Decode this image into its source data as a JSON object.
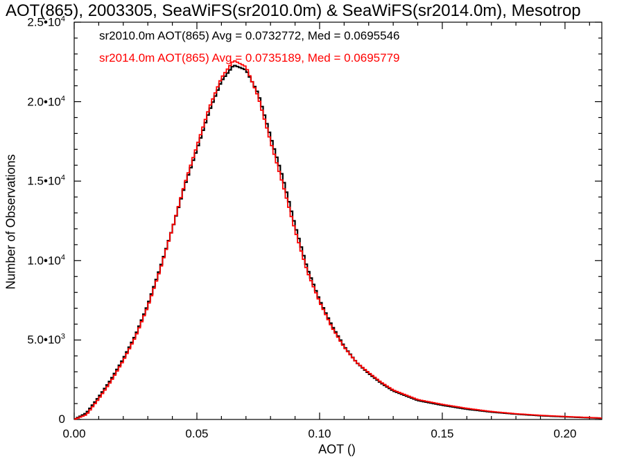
{
  "chart_data": {
    "type": "line",
    "title": "AOT(865), 2003305, SeaWiFS(sr2010.0m) & SeaWiFS(sr2014.0m), Mesotrop",
    "xlabel": "AOT ()",
    "ylabel": "Number of Observations",
    "xlim": [
      0.0,
      0.215
    ],
    "ylim": [
      0,
      25000
    ],
    "grid": false,
    "legend_position": "top-left",
    "x_tick_labels": [
      "0.00",
      "0.05",
      "0.10",
      "0.15",
      "0.20"
    ],
    "y_tick_labels": [
      {
        "mantissa": "0",
        "exp": ""
      },
      {
        "mantissa": "5.0•10",
        "exp": "3"
      },
      {
        "mantissa": "1.0•10",
        "exp": "4"
      },
      {
        "mantissa": "1.5•10",
        "exp": "4"
      },
      {
        "mantissa": "2.0•10",
        "exp": "4"
      },
      {
        "mantissa": "2.5•10",
        "exp": "4"
      }
    ],
    "x": [
      0.0,
      0.005,
      0.01,
      0.015,
      0.02,
      0.025,
      0.03,
      0.035,
      0.04,
      0.045,
      0.05,
      0.055,
      0.06,
      0.065,
      0.07,
      0.075,
      0.08,
      0.085,
      0.09,
      0.095,
      0.1,
      0.105,
      0.11,
      0.115,
      0.12,
      0.125,
      0.13,
      0.135,
      0.14,
      0.145,
      0.15,
      0.16,
      0.17,
      0.18,
      0.19,
      0.2,
      0.21,
      0.215
    ],
    "series": [
      {
        "name": "sr2010.0m AOT(865) Avg = 0.0732772, Med = 0.0695546",
        "color": "#000000",
        "values": [
          0,
          400,
          1400,
          2500,
          3800,
          5300,
          7200,
          9500,
          12000,
          14700,
          17000,
          19400,
          21300,
          22300,
          22000,
          20500,
          17800,
          15200,
          12200,
          9500,
          7500,
          5900,
          4600,
          3600,
          2900,
          2300,
          1800,
          1500,
          1200,
          1050,
          900,
          650,
          470,
          340,
          240,
          170,
          110,
          80
        ]
      },
      {
        "name": "sr2014.0m AOT(865) Avg = 0.0735189, Med = 0.0695779",
        "color": "#ff0000",
        "values": [
          0,
          300,
          1300,
          2400,
          3700,
          5200,
          7100,
          9400,
          12000,
          14800,
          17200,
          19600,
          21500,
          22600,
          22200,
          20300,
          17500,
          14800,
          11900,
          9300,
          7400,
          5800,
          4550,
          3600,
          2950,
          2350,
          1850,
          1550,
          1250,
          1100,
          950,
          700,
          500,
          360,
          260,
          185,
          120,
          90
        ]
      }
    ]
  }
}
